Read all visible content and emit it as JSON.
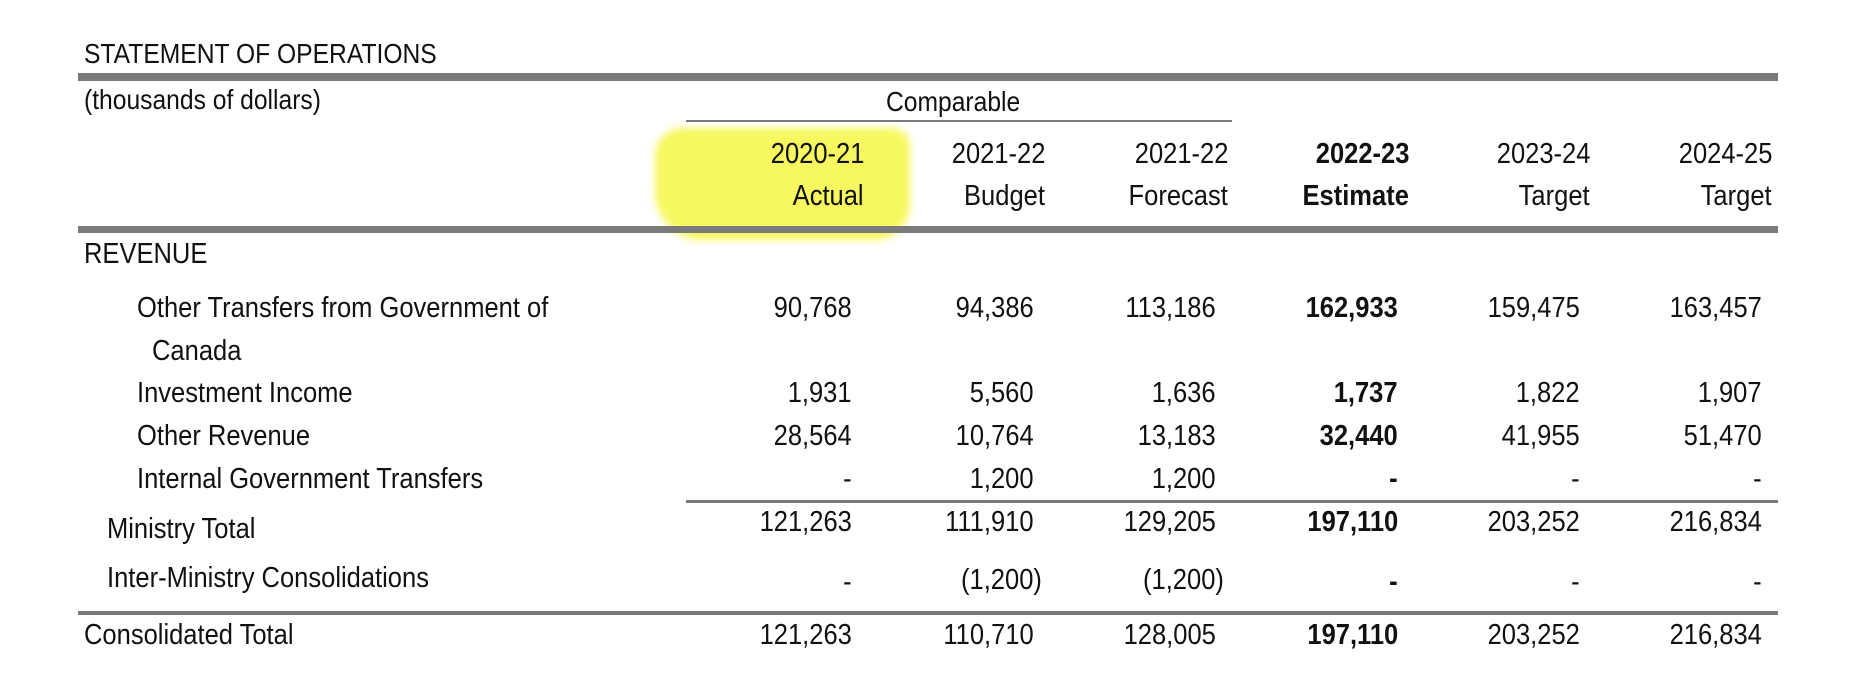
{
  "document": {
    "title": "STATEMENT OF OPERATIONS",
    "units": "(thousands of dollars)",
    "comparable_label": "Comparable"
  },
  "columns": [
    {
      "year": "2020-21",
      "type": "Actual"
    },
    {
      "year": "2021-22",
      "type": "Budget"
    },
    {
      "year": "2021-22",
      "type": "Forecast"
    },
    {
      "year": "2022-23",
      "type": "Estimate"
    },
    {
      "year": "2023-24",
      "type": "Target"
    },
    {
      "year": "2024-25",
      "type": "Target"
    }
  ],
  "section_revenue": "REVENUE",
  "rows": [
    {
      "label": "Other Transfers from Government of",
      "label_cont": "Canada",
      "values": [
        "90,768",
        "94,386",
        "113,186",
        "162,933",
        "159,475",
        "163,457"
      ]
    },
    {
      "label": "Investment Income",
      "values": [
        "1,931",
        "5,560",
        "1,636",
        "1,737",
        "1,822",
        "1,907"
      ]
    },
    {
      "label": "Other Revenue",
      "values": [
        "28,564",
        "10,764",
        "13,183",
        "32,440",
        "41,955",
        "51,470"
      ]
    },
    {
      "label": "Internal Government Transfers",
      "values": [
        "-",
        "1,200",
        "1,200",
        "-",
        "-",
        "-"
      ]
    },
    {
      "label": "Ministry Total",
      "values": [
        "121,263",
        "111,910",
        "129,205",
        "197,110",
        "203,252",
        "216,834"
      ]
    },
    {
      "label": "Inter-Ministry Consolidations",
      "values": [
        "-",
        "(1,200)",
        "(1,200)",
        "-",
        "-",
        "-"
      ]
    },
    {
      "label": "Consolidated Total",
      "values": [
        "121,263",
        "110,710",
        "128,005",
        "197,110",
        "203,252",
        "216,834"
      ]
    }
  ]
}
